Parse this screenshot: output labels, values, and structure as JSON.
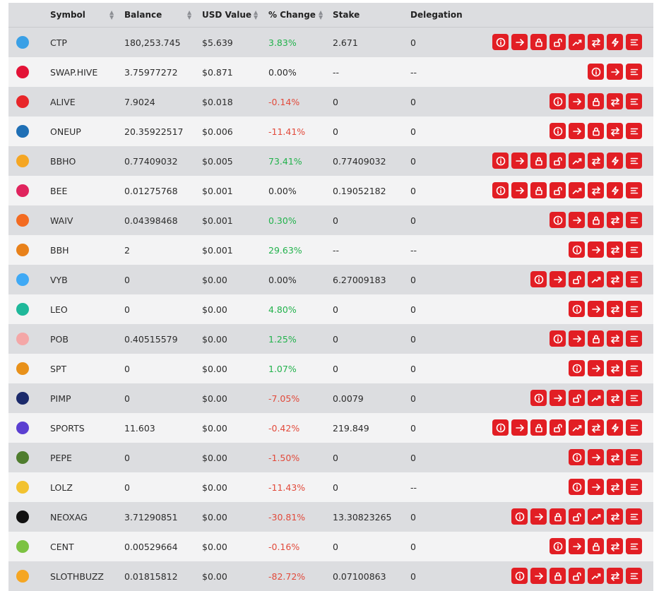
{
  "headers": {
    "symbol": "Symbol",
    "balance": "Balance",
    "usd": "USD Value",
    "change": "% Change",
    "stake": "Stake",
    "delegation": "Delegation"
  },
  "rows": [
    {
      "symbol": "CTP",
      "balance": "180,253.745",
      "usd": "$5.639",
      "change": "3.83%",
      "trend": "pos",
      "stake": "2.671",
      "delegation": "0",
      "icon": "ctp-token-icon",
      "color": "#3aa0e6",
      "actions": [
        "info",
        "transfer",
        "stake",
        "unstake",
        "delegate",
        "swap",
        "power",
        "menu"
      ]
    },
    {
      "symbol": "SWAP.HIVE",
      "balance": "3.75977272",
      "usd": "$0.871",
      "change": "0.00%",
      "trend": "neu",
      "stake": "--",
      "delegation": "--",
      "icon": "swap-hive-token-icon",
      "color": "#e31337",
      "actions": [
        "info",
        "transfer",
        "menu"
      ]
    },
    {
      "symbol": "ALIVE",
      "balance": "7.9024",
      "usd": "$0.018",
      "change": "-0.14%",
      "trend": "neg",
      "stake": "0",
      "delegation": "0",
      "icon": "alive-token-icon",
      "color": "#e8262a",
      "actions": [
        "info",
        "transfer",
        "stake",
        "swap",
        "menu"
      ]
    },
    {
      "symbol": "ONEUP",
      "balance": "20.35922517",
      "usd": "$0.006",
      "change": "-11.41%",
      "trend": "neg",
      "stake": "0",
      "delegation": "0",
      "icon": "oneup-token-icon",
      "color": "#1f6fb5",
      "actions": [
        "info",
        "transfer",
        "stake",
        "swap",
        "menu"
      ]
    },
    {
      "symbol": "BBHO",
      "balance": "0.77409032",
      "usd": "$0.005",
      "change": "73.41%",
      "trend": "pos",
      "stake": "0.77409032",
      "delegation": "0",
      "icon": "bbho-token-icon",
      "color": "#f5a623",
      "actions": [
        "info",
        "transfer",
        "stake",
        "unstake",
        "delegate",
        "swap",
        "power",
        "menu"
      ]
    },
    {
      "symbol": "BEE",
      "balance": "0.01275768",
      "usd": "$0.001",
      "change": "0.00%",
      "trend": "neu",
      "stake": "0.19052182",
      "delegation": "0",
      "icon": "bee-token-icon",
      "color": "#e0245e",
      "actions": [
        "info",
        "transfer",
        "stake",
        "unstake",
        "delegate",
        "swap",
        "power",
        "menu"
      ]
    },
    {
      "symbol": "WAIV",
      "balance": "0.04398468",
      "usd": "$0.001",
      "change": "0.30%",
      "trend": "pos",
      "stake": "0",
      "delegation": "0",
      "icon": "waiv-token-icon",
      "color": "#f36b21",
      "actions": [
        "info",
        "transfer",
        "stake",
        "swap",
        "menu"
      ]
    },
    {
      "symbol": "BBH",
      "balance": "2",
      "usd": "$0.001",
      "change": "29.63%",
      "trend": "pos",
      "stake": "--",
      "delegation": "--",
      "icon": "bbh-token-icon",
      "color": "#e8811a",
      "actions": [
        "info",
        "transfer",
        "swap",
        "menu"
      ]
    },
    {
      "symbol": "VYB",
      "balance": "0",
      "usd": "$0.00",
      "change": "0.00%",
      "trend": "neu",
      "stake": "6.27009183",
      "delegation": "0",
      "icon": "vyb-token-icon",
      "color": "#3fa9f5",
      "actions": [
        "info",
        "transfer",
        "unstake",
        "delegate",
        "swap",
        "menu"
      ]
    },
    {
      "symbol": "LEO",
      "balance": "0",
      "usd": "$0.00",
      "change": "4.80%",
      "trend": "pos",
      "stake": "0",
      "delegation": "0",
      "icon": "leo-token-icon",
      "color": "#1fb89a",
      "actions": [
        "info",
        "transfer",
        "swap",
        "menu"
      ]
    },
    {
      "symbol": "POB",
      "balance": "0.40515579",
      "usd": "$0.00",
      "change": "1.25%",
      "trend": "pos",
      "stake": "0",
      "delegation": "0",
      "icon": "pob-token-icon",
      "color": "#f4a7a7",
      "actions": [
        "info",
        "transfer",
        "stake",
        "swap",
        "menu"
      ]
    },
    {
      "symbol": "SPT",
      "balance": "0",
      "usd": "$0.00",
      "change": "1.07%",
      "trend": "pos",
      "stake": "0",
      "delegation": "0",
      "icon": "spt-token-icon",
      "color": "#e8911a",
      "actions": [
        "info",
        "transfer",
        "swap",
        "menu"
      ]
    },
    {
      "symbol": "PIMP",
      "balance": "0",
      "usd": "$0.00",
      "change": "-7.05%",
      "trend": "neg",
      "stake": "0.0079",
      "delegation": "0",
      "icon": "pimp-token-icon",
      "color": "#1b2a6b",
      "actions": [
        "info",
        "transfer",
        "unstake",
        "delegate",
        "swap",
        "menu"
      ]
    },
    {
      "symbol": "SPORTS",
      "balance": "11.603",
      "usd": "$0.00",
      "change": "-0.42%",
      "trend": "neg",
      "stake": "219.849",
      "delegation": "0",
      "icon": "sports-token-icon",
      "color": "#5b3fd1",
      "actions": [
        "info",
        "transfer",
        "stake",
        "unstake",
        "delegate",
        "swap",
        "power",
        "menu"
      ]
    },
    {
      "symbol": "PEPE",
      "balance": "0",
      "usd": "$0.00",
      "change": "-1.50%",
      "trend": "neg",
      "stake": "0",
      "delegation": "0",
      "icon": "pepe-token-icon",
      "color": "#4f7d2e",
      "actions": [
        "info",
        "transfer",
        "swap",
        "menu"
      ]
    },
    {
      "symbol": "LOLZ",
      "balance": "0",
      "usd": "$0.00",
      "change": "-11.43%",
      "trend": "neg",
      "stake": "0",
      "delegation": "--",
      "icon": "lolz-token-icon",
      "color": "#f2c230",
      "actions": [
        "info",
        "transfer",
        "swap",
        "menu"
      ]
    },
    {
      "symbol": "NEOXAG",
      "balance": "3.71290851",
      "usd": "$0.00",
      "change": "-30.81%",
      "trend": "neg",
      "stake": "13.30823265",
      "delegation": "0",
      "icon": "neoxag-token-icon",
      "color": "#111111",
      "actions": [
        "info",
        "transfer",
        "stake",
        "unstake",
        "delegate",
        "swap",
        "menu"
      ]
    },
    {
      "symbol": "CENT",
      "balance": "0.00529664",
      "usd": "$0.00",
      "change": "-0.16%",
      "trend": "neg",
      "stake": "0",
      "delegation": "0",
      "icon": "cent-token-icon",
      "color": "#7cc242",
      "actions": [
        "info",
        "transfer",
        "stake",
        "swap",
        "menu"
      ]
    },
    {
      "symbol": "SLOTHBUZZ",
      "balance": "0.01815812",
      "usd": "$0.00",
      "change": "-82.72%",
      "trend": "neg",
      "stake": "0.07100863",
      "delegation": "0",
      "icon": "slothbuzz-token-icon",
      "color": "#f5a623",
      "actions": [
        "info",
        "transfer",
        "stake",
        "unstake",
        "delegate",
        "swap",
        "menu"
      ]
    }
  ]
}
